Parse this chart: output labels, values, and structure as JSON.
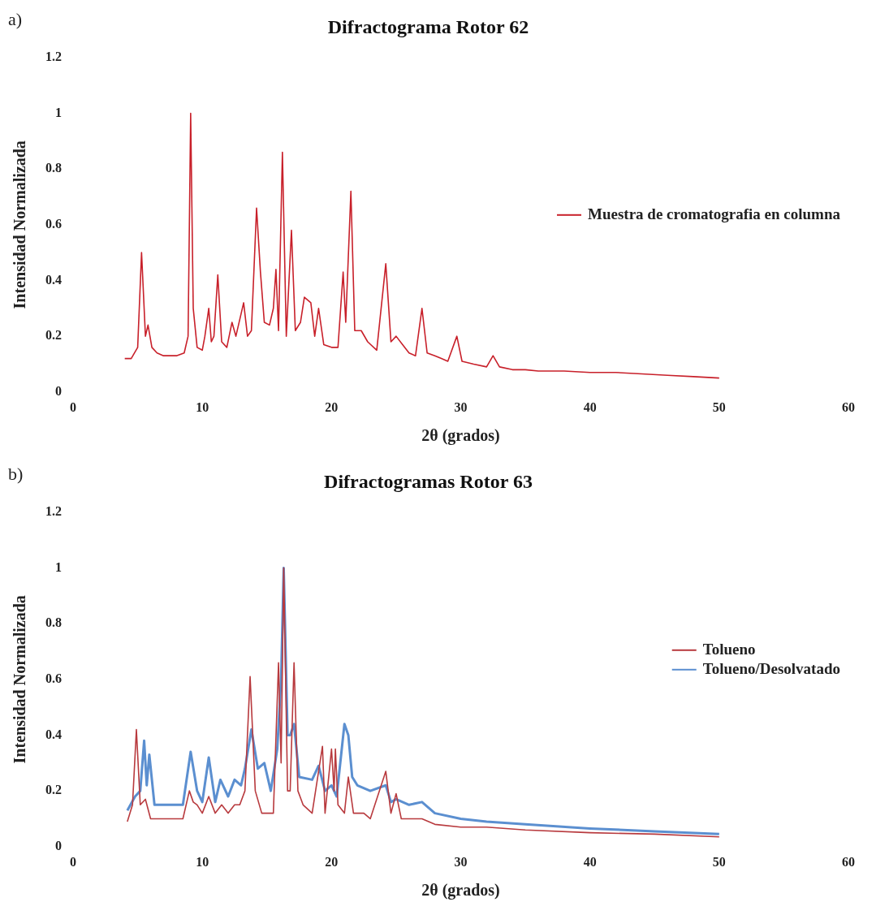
{
  "chart_data": [
    {
      "type": "line",
      "title": "Difractograma Rotor 62",
      "xlabel": "2θ (grados)",
      "ylabel": "Intensidad Normalizada",
      "annotations": [
        "a)"
      ],
      "xlim": [
        0,
        60
      ],
      "xticks": [
        0,
        10,
        20,
        30,
        40,
        50,
        60
      ],
      "ylim": [
        0,
        1.2
      ],
      "yticks": [
        0,
        0.2,
        0.4,
        0.6,
        0.8,
        1,
        1.2
      ],
      "legend": "right",
      "series": [
        {
          "name": "Muestra de cromatografia en columna",
          "color": "#c8202a",
          "x": [
            4,
            4.5,
            5,
            5.3,
            5.6,
            5.8,
            6.1,
            6.5,
            7,
            8,
            8.6,
            8.9,
            9.1,
            9.3,
            9.6,
            10,
            10.2,
            10.5,
            10.7,
            10.9,
            11.2,
            11.5,
            11.9,
            12.3,
            12.6,
            13,
            13.2,
            13.5,
            13.8,
            14.2,
            14.5,
            14.8,
            15.2,
            15.5,
            15.7,
            15.9,
            16.2,
            16.5,
            16.9,
            17.2,
            17.6,
            17.9,
            18.4,
            18.7,
            19,
            19.4,
            20,
            20.5,
            20.9,
            21.1,
            21.5,
            21.8,
            22.3,
            22.8,
            23.5,
            24.2,
            24.6,
            25,
            25.5,
            26,
            26.5,
            27,
            27.4,
            28,
            28.5,
            29,
            29.7,
            30.1,
            31,
            32,
            32.5,
            33,
            34,
            35,
            36,
            38,
            40,
            42,
            44,
            46,
            48,
            50
          ],
          "values": [
            0.12,
            0.12,
            0.16,
            0.5,
            0.2,
            0.24,
            0.16,
            0.14,
            0.13,
            0.13,
            0.14,
            0.2,
            1.0,
            0.3,
            0.16,
            0.15,
            0.2,
            0.3,
            0.18,
            0.2,
            0.42,
            0.18,
            0.16,
            0.25,
            0.2,
            0.28,
            0.32,
            0.2,
            0.22,
            0.66,
            0.43,
            0.25,
            0.24,
            0.3,
            0.44,
            0.22,
            0.86,
            0.2,
            0.58,
            0.22,
            0.25,
            0.34,
            0.32,
            0.2,
            0.3,
            0.17,
            0.16,
            0.16,
            0.43,
            0.25,
            0.72,
            0.22,
            0.22,
            0.18,
            0.15,
            0.46,
            0.18,
            0.2,
            0.17,
            0.14,
            0.13,
            0.3,
            0.14,
            0.13,
            0.12,
            0.11,
            0.2,
            0.11,
            0.1,
            0.09,
            0.13,
            0.09,
            0.08,
            0.08,
            0.075,
            0.075,
            0.07,
            0.07,
            0.065,
            0.06,
            0.055,
            0.05
          ]
        }
      ]
    },
    {
      "type": "line",
      "title": "Difractogramas Rotor 63",
      "xlabel": "2θ (grados)",
      "ylabel": "Intensidad Normalizada",
      "annotations": [
        "b)"
      ],
      "xlim": [
        0,
        60
      ],
      "xticks": [
        0,
        10,
        20,
        30,
        40,
        50,
        60
      ],
      "ylim": [
        0,
        1.2
      ],
      "yticks": [
        0,
        0.2,
        0.4,
        0.6,
        0.8,
        1,
        1.2
      ],
      "legend": "right",
      "series": [
        {
          "name": "Tolueno",
          "color": "#b83a3e",
          "x": [
            4.2,
            4.6,
            4.9,
            5.2,
            5.6,
            6,
            7,
            8.5,
            9,
            9.3,
            9.6,
            10,
            10.5,
            11,
            11.5,
            12,
            12.5,
            12.9,
            13.3,
            13.7,
            14.1,
            14.6,
            15.5,
            15.9,
            16.1,
            16.3,
            16.6,
            16.8,
            17.1,
            17.4,
            17.8,
            18.5,
            19.3,
            19.5,
            20,
            20.2,
            20.3,
            20.5,
            21,
            21.3,
            21.7,
            22.5,
            23,
            24.2,
            24.6,
            25,
            25.4,
            26,
            27,
            28,
            30,
            32,
            35,
            40,
            45,
            50
          ],
          "values": [
            0.09,
            0.15,
            0.42,
            0.15,
            0.17,
            0.1,
            0.1,
            0.1,
            0.2,
            0.16,
            0.15,
            0.12,
            0.18,
            0.12,
            0.15,
            0.12,
            0.15,
            0.15,
            0.2,
            0.61,
            0.2,
            0.12,
            0.12,
            0.66,
            0.3,
            1.0,
            0.2,
            0.2,
            0.66,
            0.2,
            0.15,
            0.12,
            0.36,
            0.12,
            0.35,
            0.2,
            0.35,
            0.15,
            0.12,
            0.25,
            0.12,
            0.12,
            0.1,
            0.27,
            0.12,
            0.19,
            0.1,
            0.1,
            0.1,
            0.08,
            0.07,
            0.07,
            0.06,
            0.05,
            0.045,
            0.035
          ]
        },
        {
          "name": "Tolueno/Desolvatado",
          "color": "#5b8fd0",
          "x": [
            4.2,
            4.8,
            5.2,
            5.5,
            5.7,
            5.9,
            6.3,
            7,
            8.5,
            9.1,
            9.6,
            10,
            10.5,
            11,
            11.4,
            12,
            12.5,
            13,
            13.3,
            13.8,
            14.3,
            14.8,
            15.3,
            15.8,
            16.1,
            16.3,
            16.6,
            16.8,
            17.1,
            17.5,
            18.5,
            19,
            19.5,
            20,
            20.4,
            21,
            21.3,
            21.6,
            22,
            23,
            24.2,
            24.6,
            25,
            26,
            27,
            28,
            30,
            32,
            35,
            40,
            45,
            50
          ],
          "values": [
            0.13,
            0.18,
            0.2,
            0.38,
            0.22,
            0.33,
            0.15,
            0.15,
            0.15,
            0.34,
            0.2,
            0.16,
            0.32,
            0.16,
            0.24,
            0.18,
            0.24,
            0.22,
            0.28,
            0.42,
            0.28,
            0.3,
            0.2,
            0.35,
            0.6,
            1.0,
            0.4,
            0.4,
            0.44,
            0.25,
            0.24,
            0.29,
            0.2,
            0.22,
            0.18,
            0.44,
            0.4,
            0.25,
            0.22,
            0.2,
            0.22,
            0.16,
            0.17,
            0.15,
            0.16,
            0.12,
            0.1,
            0.09,
            0.08,
            0.065,
            0.055,
            0.045
          ]
        }
      ]
    }
  ]
}
